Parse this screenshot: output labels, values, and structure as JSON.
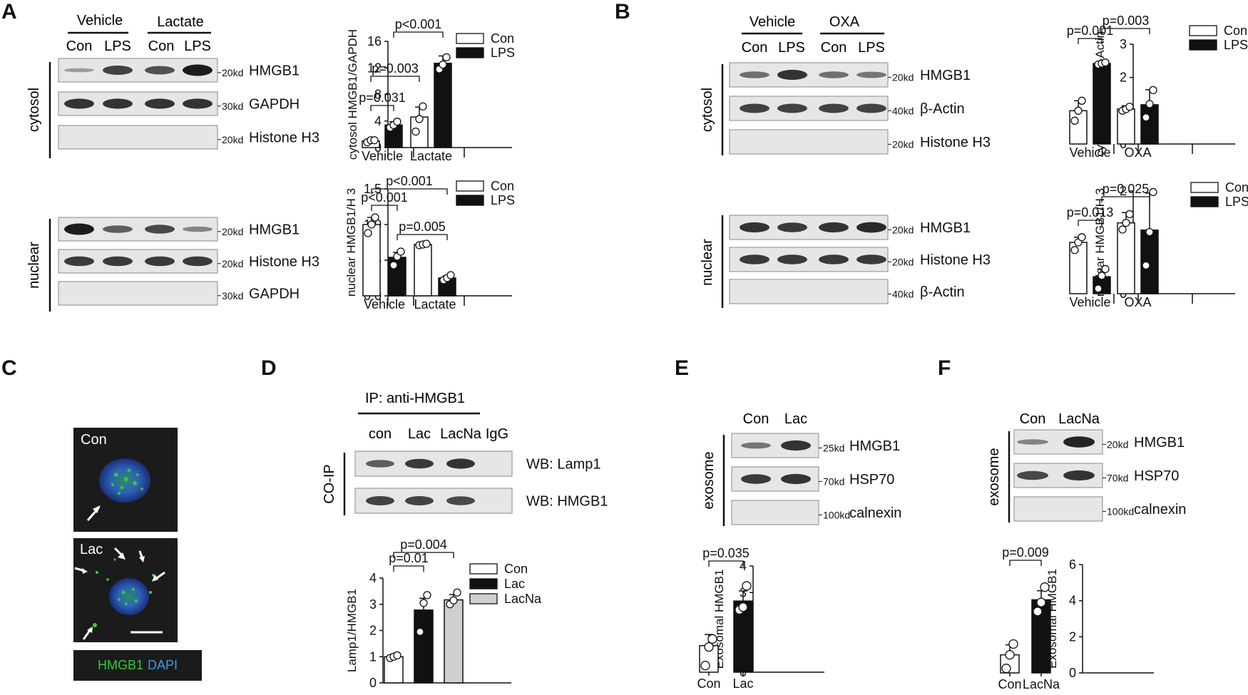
{
  "panels": {
    "A": "A",
    "B": "B",
    "C": "C",
    "D": "D",
    "E": "E",
    "F": "F"
  },
  "blotA": {
    "groups": [
      "Vehicle",
      "Lactate"
    ],
    "lanes": [
      "Con",
      "LPS",
      "Con",
      "LPS"
    ],
    "cytosol_label": "cytosol",
    "nuclear_label": "nuclear",
    "cytosol_rows": [
      {
        "marker": "20kd",
        "protein": "HMGB1",
        "bands": [
          0.15,
          0.75,
          0.65,
          1.0
        ]
      },
      {
        "marker": "30kd",
        "protein": "GAPDH",
        "bands": [
          0.85,
          0.85,
          0.85,
          0.85
        ]
      },
      {
        "marker": "20kd",
        "protein": "Histone H3",
        "bands": [
          0,
          0,
          0,
          0
        ]
      }
    ],
    "nuclear_rows": [
      {
        "marker": "20kd",
        "protein": "HMGB1",
        "bands": [
          1.0,
          0.55,
          0.7,
          0.3
        ]
      },
      {
        "marker": "20kd",
        "protein": "Histone H3",
        "bands": [
          0.8,
          0.8,
          0.8,
          0.8
        ]
      },
      {
        "marker": "30kd",
        "protein": "GAPDH",
        "bands": [
          0,
          0,
          0,
          0
        ]
      }
    ]
  },
  "blotB": {
    "groups": [
      "Vehicle",
      "OXA"
    ],
    "lanes": [
      "Con",
      "LPS",
      "Con",
      "LPS"
    ],
    "cytosol_label": "cytosol",
    "nuclear_label": "nuclear",
    "cytosol_rows": [
      {
        "marker": "20kd",
        "protein": "HMGB1",
        "bands": [
          0.45,
          0.85,
          0.45,
          0.4
        ]
      },
      {
        "marker": "40kd",
        "protein": "β-Actin",
        "bands": [
          0.75,
          0.75,
          0.75,
          0.75
        ]
      },
      {
        "marker": "20kd",
        "protein": "Histone H3",
        "bands": [
          0,
          0,
          0,
          0
        ]
      }
    ],
    "nuclear_rows": [
      {
        "marker": "20kd",
        "protein": "HMGB1",
        "bands": [
          0.85,
          0.8,
          0.85,
          0.9
        ]
      },
      {
        "marker": "20kd",
        "protein": "Histone H3",
        "bands": [
          0.8,
          0.8,
          0.8,
          0.8
        ]
      },
      {
        "marker": "40kd",
        "protein": "β-Actin",
        "bands": [
          0,
          0,
          0,
          0
        ]
      }
    ]
  },
  "blotD": {
    "ip_label": "IP: anti-HMGB1",
    "lanes": [
      "con",
      "Lac",
      "LacNa",
      "IgG"
    ],
    "side_label": "CO-IP",
    "rows": [
      {
        "protein": "WB: Lamp1",
        "bands": [
          0.55,
          0.8,
          0.85,
          0
        ]
      },
      {
        "protein": "WB: HMGB1",
        "bands": [
          0.75,
          0.75,
          0.7,
          0
        ]
      }
    ]
  },
  "blotE": {
    "lanes": [
      "Con",
      "Lac"
    ],
    "side_label": "exosome",
    "rows": [
      {
        "marker": "25kd",
        "protein": "HMGB1",
        "bands": [
          0.4,
          0.85
        ]
      },
      {
        "marker": "70kd",
        "protein": "HSP70",
        "bands": [
          0.8,
          0.85
        ]
      },
      {
        "marker": "100kd",
        "protein": "calnexin",
        "bands": [
          0,
          0
        ]
      }
    ]
  },
  "blotF": {
    "lanes": [
      "Con",
      "LacNa"
    ],
    "side_label": "exosome",
    "rows": [
      {
        "marker": "20kd",
        "protein": "HMGB1",
        "bands": [
          0.3,
          0.95
        ]
      },
      {
        "marker": "70kd",
        "protein": "HSP70",
        "bands": [
          0.7,
          0.85
        ]
      },
      {
        "marker": "100kd",
        "protein": "calnexin",
        "bands": [
          0,
          0
        ]
      }
    ]
  },
  "micro": {
    "con_label": "Con",
    "lac_label": "Lac",
    "legend_hmgb1": "HMGB1",
    "legend_dapi": "DAPI"
  },
  "chart_data": [
    {
      "id": "A_top",
      "type": "bar",
      "ylabel": "cytosol HMGB1/GAPDH",
      "ylim": [
        0,
        16
      ],
      "yticks": [
        0,
        4,
        8,
        12,
        16
      ],
      "groups": [
        "Vehicle",
        "Lactate"
      ],
      "legend": [
        "Con",
        "LPS"
      ],
      "series": [
        {
          "name": "Con",
          "values": [
            1.0,
            4.6
          ],
          "errors": [
            0.3,
            1.5
          ],
          "points": [
            [
              0.8,
              1.1,
              1.1
            ],
            [
              2.4,
              4.3,
              6.2
            ]
          ]
        },
        {
          "name": "LPS",
          "values": [
            3.4,
            12.7
          ],
          "errors": [
            0.5,
            1.1
          ],
          "points": [
            [
              3.0,
              3.4,
              3.9
            ],
            [
              11.8,
              12.5,
              13.6
            ]
          ]
        }
      ],
      "comparisons": [
        {
          "from": 0,
          "to": 1,
          "label": "p=0.031"
        },
        {
          "from": 0,
          "to": 2,
          "label": "p=0.003"
        },
        {
          "from": 1,
          "to": 3,
          "label": "p<0.001"
        }
      ]
    },
    {
      "id": "A_bottom",
      "type": "bar",
      "ylabel": "nuclear HMGB1/H 3",
      "ylim": [
        0,
        1.5
      ],
      "yticks": [
        0.0,
        0.5,
        1.0,
        1.5
      ],
      "groups": [
        "Vehicle",
        "Lactate"
      ],
      "legend": [
        "Con",
        "LPS"
      ],
      "series": [
        {
          "name": "Con",
          "values": [
            1.0,
            0.72
          ],
          "errors": [
            0.1,
            0.02
          ],
          "points": [
            [
              0.88,
              1.0,
              1.1
            ],
            [
              0.71,
              0.72,
              0.73
            ]
          ]
        },
        {
          "name": "LPS",
          "values": [
            0.54,
            0.25
          ],
          "errors": [
            0.07,
            0.03
          ],
          "points": [
            [
              0.43,
              0.55,
              0.62
            ],
            [
              0.22,
              0.25,
              0.29
            ]
          ]
        }
      ],
      "comparisons": [
        {
          "from": 0,
          "to": 1,
          "label": "p<0.001"
        },
        {
          "from": 0,
          "to": 3,
          "label": "p<0.001"
        },
        {
          "from": 1,
          "to": 3,
          "label": "p=0.005"
        }
      ]
    },
    {
      "id": "B_top",
      "type": "bar",
      "ylabel": "cytosol HMGB1/β-Actin",
      "ylim": [
        0,
        3
      ],
      "yticks": [
        0,
        1,
        2,
        3
      ],
      "groups": [
        "Vehicle",
        "OXA"
      ],
      "legend": [
        "Con",
        "LPS"
      ],
      "series": [
        {
          "name": "Con",
          "values": [
            1.0,
            1.05
          ],
          "errors": [
            0.3,
            0.1
          ],
          "points": [
            [
              0.7,
              1.0,
              1.3
            ],
            [
              1.0,
              1.05,
              1.12
            ]
          ]
        },
        {
          "name": "LPS",
          "values": [
            2.42,
            1.18
          ],
          "errors": [
            0.05,
            0.45
          ],
          "points": [
            [
              2.39,
              2.42,
              2.45
            ],
            [
              0.8,
              1.2,
              1.62
            ]
          ]
        }
      ],
      "comparisons": [
        {
          "from": 0,
          "to": 1,
          "label": "p=0.001"
        },
        {
          "from": 1,
          "to": 3,
          "label": "p=0.003"
        }
      ]
    },
    {
      "id": "B_bottom",
      "type": "bar",
      "ylabel": "nuclear HMGB1/H 3",
      "ylim": [
        0,
        2
      ],
      "yticks": [
        0,
        1,
        2
      ],
      "groups": [
        "Vehicle",
        "OXA"
      ],
      "legend": [
        "Con",
        "LPS"
      ],
      "series": [
        {
          "name": "Con",
          "values": [
            1.0,
            1.38
          ],
          "errors": [
            0.1,
            0.2
          ],
          "points": [
            [
              0.85,
              1.0,
              1.1
            ],
            [
              1.25,
              1.38,
              1.55
            ]
          ]
        },
        {
          "name": "LPS",
          "values": [
            0.33,
            1.24
          ],
          "errors": [
            0.15,
            0.72
          ],
          "points": [
            [
              0.1,
              0.35,
              0.48
            ],
            [
              0.55,
              1.2,
              1.98
            ]
          ]
        }
      ],
      "comparisons": [
        {
          "from": 0,
          "to": 1,
          "label": "p=0.013"
        },
        {
          "from": 1,
          "to": 3,
          "label": "p=0.025"
        }
      ]
    },
    {
      "id": "D",
      "type": "bar",
      "ylabel": "Lamp1/HMGB1",
      "ylim": [
        0,
        4
      ],
      "yticks": [
        0,
        1,
        2,
        3,
        4
      ],
      "categories": [
        "Con",
        "Lac",
        "LacNa"
      ],
      "legend": [
        "Con",
        "Lac",
        "LacNa"
      ],
      "values": [
        1.0,
        2.78,
        3.17
      ],
      "errors": [
        0.06,
        0.45,
        0.2
      ],
      "points": [
        [
          0.95,
          1.0,
          1.05
        ],
        [
          1.95,
          3.05,
          3.35
        ],
        [
          3.0,
          3.15,
          3.45
        ]
      ],
      "comparisons": [
        {
          "from": 0,
          "to": 1,
          "label": "p=0.01"
        },
        {
          "from": 0,
          "to": 2,
          "label": "p=0.004"
        }
      ]
    },
    {
      "id": "E",
      "type": "bar",
      "ylabel": "Exosomal HMGB1",
      "ylim": [
        0,
        4
      ],
      "yticks": [
        0,
        1,
        2,
        3,
        4
      ],
      "categories": [
        "Con",
        "Lac"
      ],
      "values": [
        1.0,
        2.68
      ],
      "errors": [
        0.42,
        0.38
      ],
      "points": [
        [
          0.25,
          0.95,
          1.25
        ],
        [
          2.35,
          2.45,
          3.25
        ]
      ],
      "comparisons": [
        {
          "from": 0,
          "to": 1,
          "label": "p=0.035"
        }
      ]
    },
    {
      "id": "F",
      "type": "bar",
      "ylabel": "Exosomal HMGB1",
      "ylim": [
        0,
        6
      ],
      "yticks": [
        0,
        2,
        4,
        6
      ],
      "categories": [
        "Con",
        "LacNa"
      ],
      "values": [
        1.0,
        4.05
      ],
      "errors": [
        0.55,
        0.5
      ],
      "points": [
        [
          0.25,
          1.0,
          1.6
        ],
        [
          3.4,
          3.9,
          4.75
        ]
      ],
      "comparisons": [
        {
          "from": 0,
          "to": 1,
          "label": "p=0.009"
        }
      ]
    }
  ]
}
